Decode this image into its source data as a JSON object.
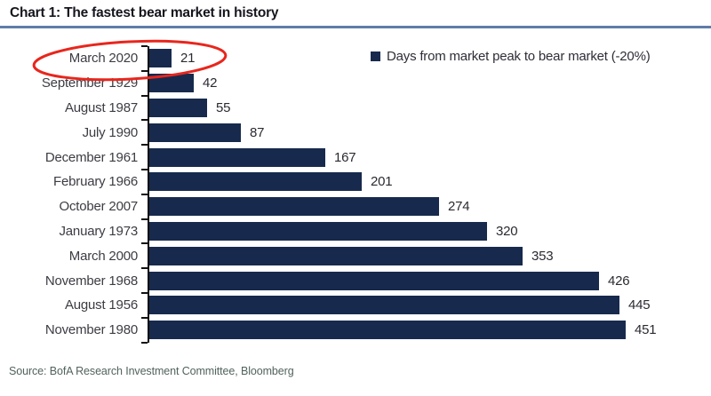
{
  "title": "Chart 1: The fastest bear market in history",
  "legend": {
    "swatch_icon": "navy-square",
    "label": "Days from market peak to bear market (-20%)"
  },
  "source": "Source:  BofA Research Investment Committee, Bloomberg",
  "colors": {
    "bar": "#172a4d",
    "title_underline": "#5f7ca9",
    "highlight_ellipse": "#e8261d",
    "axis": "#111111",
    "source_text": "#51635c"
  },
  "chart_data": {
    "type": "bar",
    "orientation": "horizontal",
    "title": "Chart 1: The fastest bear market in history",
    "xlabel": "",
    "ylabel": "",
    "xlim": [
      0,
      451
    ],
    "grid": false,
    "legend_position": "top-right",
    "legend_entries": [
      "Days from market peak to bear market (-20%)"
    ],
    "categories": [
      "March 2020",
      "September 1929",
      "August 1987",
      "July 1990",
      "December 1961",
      "February 1966",
      "October 2007",
      "January 1973",
      "March 2000",
      "November 1968",
      "August 1956",
      "November 1980"
    ],
    "values": [
      21,
      42,
      55,
      87,
      167,
      201,
      274,
      320,
      353,
      426,
      445,
      451
    ],
    "bar_color": "#172a4d",
    "value_labels_shown": true,
    "annotation": {
      "type": "red-ellipse-highlight",
      "highlighted_category": "March 2020",
      "highlighted_value": 21
    }
  }
}
